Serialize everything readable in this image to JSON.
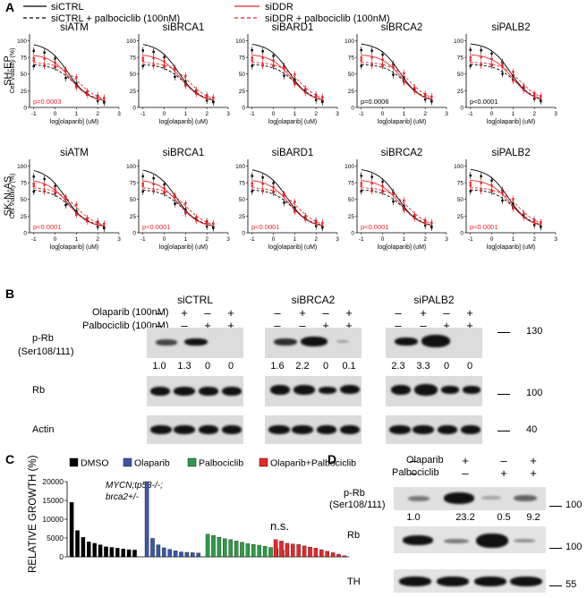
{
  "panelA": {
    "letter": "A",
    "legend": {
      "siCTRL": "siCTRL",
      "siCTRL_palbo": "siCTRL + palbociclib (100nM)",
      "siDDR": "siDDR",
      "siDDR_palbo": "siDDR + palbociclib (100nM)"
    },
    "ylabel": "Cell Viability (%)",
    "xlabel": "log[olaparib] (uM)",
    "yticks": [
      "0",
      "25",
      "50",
      "75",
      "100"
    ],
    "xticks": [
      "-1",
      "0",
      "1",
      "2",
      "3"
    ],
    "colors": {
      "ctrl": "#000000",
      "ddr": "#e8262b"
    },
    "rows": [
      {
        "cell_line": "SH-EP",
        "panels": [
          {
            "title": "siATM",
            "pvalue": "p=0.0003",
            "p_color": "#e8262b"
          },
          {
            "title": "siBRCA1",
            "pvalue": "",
            "p_color": "#000000"
          },
          {
            "title": "siBARD1",
            "pvalue": "",
            "p_color": "#000000"
          },
          {
            "title": "siBRCA2",
            "pvalue": "p=0.0006",
            "p_color": "#000000"
          },
          {
            "title": "siPALB2",
            "pvalue": "p<0.0001",
            "p_color": "#000000"
          }
        ]
      },
      {
        "cell_line": "SK-N-AS",
        "panels": [
          {
            "title": "siATM",
            "pvalue": "p<0.0001",
            "p_color": "#e8262b"
          },
          {
            "title": "siBRCA1",
            "pvalue": "p<0.0001",
            "p_color": "#e8262b"
          },
          {
            "title": "siBARD1",
            "pvalue": "p<0.0001",
            "p_color": "#e8262b"
          },
          {
            "title": "siBRCA2",
            "pvalue": "p<0.0001",
            "p_color": "#e8262b"
          },
          {
            "title": "siPALB2",
            "pvalue": "p<0.0001",
            "p_color": "#e8262b"
          }
        ]
      }
    ]
  },
  "panelB": {
    "letter": "B",
    "treatments": [
      "Olaparib (100nM)",
      "Palbociclib (100nM)"
    ],
    "groups": [
      {
        "name": "siCTRL",
        "olaparib": [
          "–",
          "+",
          "–",
          "+"
        ],
        "palbociclib": [
          "–",
          "–",
          "+",
          "+"
        ],
        "quant": [
          "1.0",
          "1.3",
          "0",
          "0"
        ]
      },
      {
        "name": "siBRCA2",
        "olaparib": [
          "–",
          "+",
          "–",
          "+"
        ],
        "palbociclib": [
          "–",
          "–",
          "+",
          "+"
        ],
        "quant": [
          "1.6",
          "2.2",
          "0",
          "0.1"
        ]
      },
      {
        "name": "siPALB2",
        "olaparib": [
          "–",
          "+",
          "–",
          "+"
        ],
        "palbociclib": [
          "–",
          "–",
          "+",
          "+"
        ],
        "quant": [
          "2.3",
          "3.3",
          "0",
          "0"
        ]
      }
    ],
    "blots": [
      "p-Rb\n(Ser108/111)",
      "Rb",
      "Actin"
    ],
    "markers": [
      "130",
      "100",
      "40"
    ]
  },
  "panelC": {
    "letter": "C",
    "legend": [
      "DMSO",
      "Olaparib",
      "Palbociclib",
      "Olaparib+Palbociclib"
    ],
    "colors": [
      "#000000",
      "#3a57a6",
      "#2e9a48",
      "#e8262b"
    ],
    "ylabel": "RELATIVE GROWTH (%)",
    "yticks": [
      "0",
      "5000",
      "10000",
      "15000",
      "20000"
    ],
    "annotation_line1": "MYCN;tp53-/-;",
    "annotation_line2": "brca2+/-",
    "ns": "n.s."
  },
  "panelD": {
    "letter": "D",
    "treatments": [
      "Olaparib",
      "Palbociclib"
    ],
    "olaparib": [
      "–",
      "+",
      "–",
      "+"
    ],
    "palbociclib": [
      "–",
      "–",
      "+",
      "+"
    ],
    "blots": [
      "p-Rb\n(Ser108/111)",
      "Rb",
      "TH"
    ],
    "quant": [
      "1.0",
      "23.2",
      "0.5",
      "9.2"
    ],
    "markers": [
      "100",
      "100",
      "55"
    ]
  },
  "chart_data": [
    {
      "type": "bar",
      "title": "",
      "xlabel": "",
      "ylabel": "RELATIVE GROWTH (%)",
      "ylim": [
        0,
        20000
      ],
      "series": [
        {
          "name": "DMSO",
          "values": [
            14500,
            7000,
            5200,
            4000,
            3600,
            3200,
            2700,
            2500,
            2300,
            2100,
            1900,
            1800
          ]
        },
        {
          "name": "Olaparib",
          "values": [
            20000,
            4900,
            3200,
            2400,
            2000,
            1600,
            1300,
            1200,
            1100,
            1000
          ]
        },
        {
          "name": "Palbociclib",
          "values": [
            6000,
            5700,
            5200,
            4800,
            4600,
            4200,
            3900,
            3500,
            3300,
            3100,
            2800,
            2500,
            2200,
            1800
          ]
        },
        {
          "name": "Olaparib+Palbociclib",
          "values": [
            4600,
            4200,
            3600,
            3400,
            3300,
            2900,
            2600,
            2300,
            1900,
            1500,
            1100,
            700,
            300
          ]
        }
      ]
    }
  ]
}
